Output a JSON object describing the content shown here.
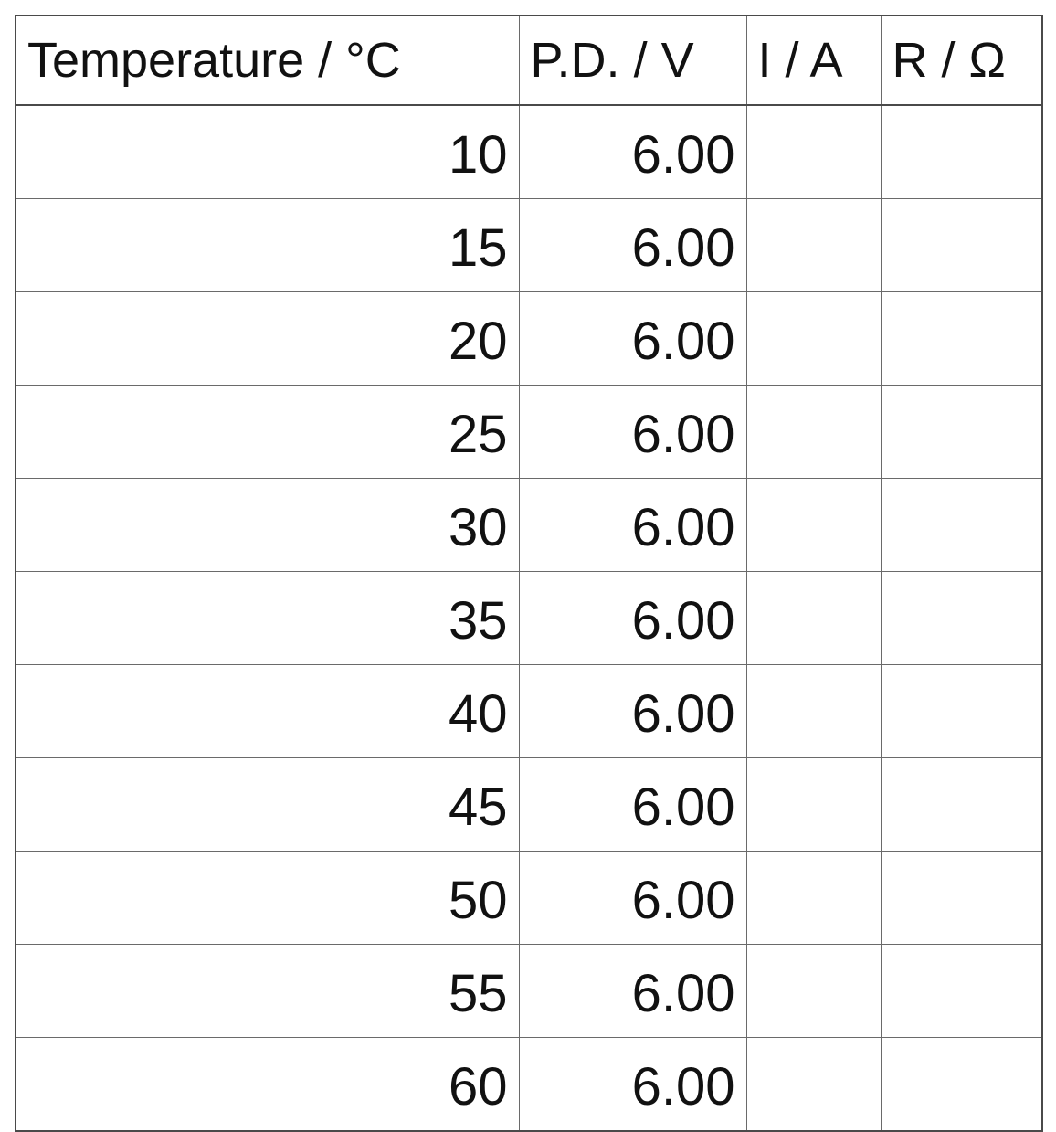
{
  "table": {
    "headers": [
      "Temperature / °C",
      "P.D. / V",
      "I / A",
      "R / Ω"
    ],
    "rows": [
      [
        "10",
        "6.00",
        "",
        ""
      ],
      [
        "15",
        "6.00",
        "",
        ""
      ],
      [
        "20",
        "6.00",
        "",
        ""
      ],
      [
        "25",
        "6.00",
        "",
        ""
      ],
      [
        "30",
        "6.00",
        "",
        ""
      ],
      [
        "35",
        "6.00",
        "",
        ""
      ],
      [
        "40",
        "6.00",
        "",
        ""
      ],
      [
        "45",
        "6.00",
        "",
        ""
      ],
      [
        "50",
        "6.00",
        "",
        ""
      ],
      [
        "55",
        "6.00",
        "",
        ""
      ],
      [
        "60",
        "6.00",
        "",
        ""
      ]
    ]
  }
}
